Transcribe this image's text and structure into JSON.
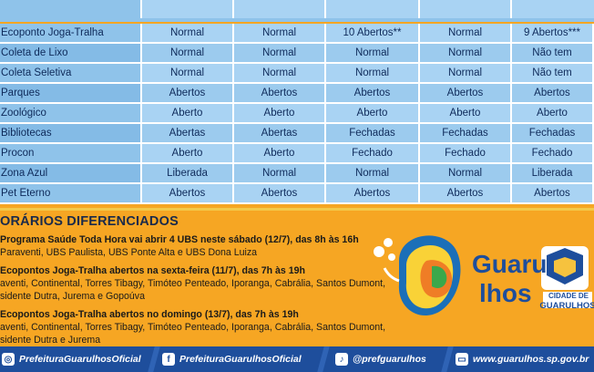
{
  "schedule": {
    "rows": [
      {
        "label": "Ecoponto Joga-Tralha",
        "values": [
          "Normal",
          "Normal",
          "10 Abertos**",
          "Normal",
          "9 Abertos***"
        ]
      },
      {
        "label": "Coleta de Lixo",
        "values": [
          "Normal",
          "Normal",
          "Normal",
          "Normal",
          "Não tem"
        ]
      },
      {
        "label": "Coleta Seletiva",
        "values": [
          "Normal",
          "Normal",
          "Normal",
          "Normal",
          "Não tem"
        ]
      },
      {
        "label": "Parques",
        "values": [
          "Abertos",
          "Abertos",
          "Abertos",
          "Abertos",
          "Abertos"
        ]
      },
      {
        "label": "Zoológico",
        "values": [
          "Aberto",
          "Aberto",
          "Aberto",
          "Aberto",
          "Aberto"
        ]
      },
      {
        "label": "Bibliotecas",
        "values": [
          "Abertas",
          "Abertas",
          "Fechadas",
          "Fechadas",
          "Fechadas"
        ]
      },
      {
        "label": "Procon",
        "values": [
          "Aberto",
          "Aberto",
          "Fechado",
          "Fechado",
          "Fechado"
        ]
      },
      {
        "label": "Zona Azul",
        "values": [
          "Liberada",
          "Normal",
          "Normal",
          "Normal",
          "Liberada"
        ]
      },
      {
        "label": "Pet Eterno",
        "values": [
          "Abertos",
          "Abertos",
          "Abertos",
          "Abertos",
          "Abertos"
        ]
      }
    ]
  },
  "special_hours": {
    "title": "ORÁRIOS DIFERENCIADOS",
    "items": [
      {
        "head": "Programa Saúde Toda Hora vai abrir 4 UBS neste sábado (12/7), das 8h às 16h",
        "body": "Paraventi, UBS Paulista, UBS Ponte Alta e UBS Dona Luiza"
      },
      {
        "head": "Ecopontos Joga-Tralha abertos na sexta-feira (11/7), das 7h às 19h",
        "body": "aventi, Continental, Torres Tibagy, Timóteo Penteado, Iporanga, Cabrália, Santos Dumont,",
        "body2": "sidente Dutra, Jurema e Gopoúva"
      },
      {
        "head": "Ecopontos Joga-Tralha abertos no domingo (13/7), das 7h às 19h",
        "body": "aventi, Continental, Torres Tibagy, Timóteo Penteado, Iporanga, Cabrália, Santos Dumont,",
        "body2": "sidente Dutra e Jurema"
      }
    ]
  },
  "logo": {
    "wordmark_line1": "Guaru",
    "wordmark_line2": "lhos",
    "seal_caption_1": "CIDADE DE",
    "seal_caption_2": "GUARULHOS"
  },
  "footer": {
    "items": [
      {
        "icon": "instagram-icon",
        "glyph": "◎",
        "text": "PrefeituraGuarulhosOficial"
      },
      {
        "icon": "facebook-icon",
        "glyph": "f",
        "text": "PrefeituraGuarulhosOficial"
      },
      {
        "icon": "tiktok-icon",
        "glyph": "♪",
        "text": "@prefguarulhos"
      },
      {
        "icon": "web-icon",
        "glyph": "▭",
        "text": "www.guarulhos.sp.gov.br"
      }
    ]
  },
  "colors": {
    "table_light": "#a9d3f3",
    "table_label": "#8fc3ea",
    "orange": "#f6a623",
    "footer_blue": "#1e4e9c",
    "text_navy": "#0e2a5a"
  }
}
